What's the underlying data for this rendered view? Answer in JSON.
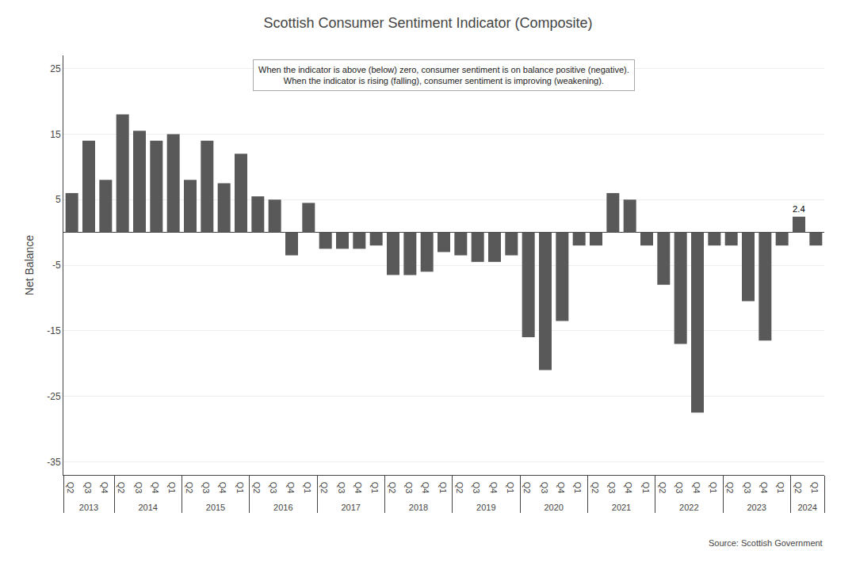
{
  "chart_data": {
    "type": "bar",
    "title": "Scottish Consumer Sentiment Indicator (Composite)",
    "subtitle": [
      "When the indicator is above (below) zero, consumer sentiment is on balance positive (negative).",
      "When the indicator is rising (falling), consumer sentiment is improving (weakening)."
    ],
    "ylabel": "Net Balance",
    "source": "Source: Scottish Government",
    "categories": [
      "Q2",
      "Q3",
      "Q4",
      "Q1",
      "Q2",
      "Q3",
      "Q4",
      "Q1",
      "Q2",
      "Q3",
      "Q4",
      "Q1",
      "Q2",
      "Q3",
      "Q4",
      "Q1",
      "Q2",
      "Q3",
      "Q4",
      "Q1",
      "Q2",
      "Q3",
      "Q4",
      "Q1",
      "Q2",
      "Q3",
      "Q4",
      "Q1",
      "Q2",
      "Q3",
      "Q4",
      "Q1",
      "Q2",
      "Q3",
      "Q4",
      "Q1",
      "Q2",
      "Q3",
      "Q4",
      "Q1",
      "Q2",
      "Q3",
      "Q4",
      "Q1",
      "Q2"
    ],
    "years": [
      "2013",
      "2013",
      "2013",
      "2014",
      "2014",
      "2014",
      "2014",
      "2015",
      "2015",
      "2015",
      "2015",
      "2016",
      "2016",
      "2016",
      "2016",
      "2017",
      "2017",
      "2017",
      "2017",
      "2018",
      "2018",
      "2018",
      "2018",
      "2019",
      "2019",
      "2019",
      "2019",
      "2020",
      "2020",
      "2020",
      "2020",
      "2021",
      "2021",
      "2021",
      "2021",
      "2022",
      "2022",
      "2022",
      "2022",
      "2023",
      "2023",
      "2023",
      "2023",
      "2024",
      "2024"
    ],
    "values": [
      6.0,
      14.0,
      8.0,
      15.0,
      18.0,
      15.5,
      14.0,
      12.0,
      8.0,
      14.0,
      7.5,
      4.5,
      5.5,
      5.0,
      -3.5,
      -2.0,
      -2.5,
      -2.5,
      -2.5,
      -3.0,
      -6.5,
      -6.5,
      -6.0,
      -3.5,
      -3.5,
      -4.5,
      -4.5,
      -2.0,
      -16.0,
      -21.0,
      -13.5,
      -2.0,
      -2.0,
      6.0,
      5.0,
      -2.0,
      -8.0,
      -17.0,
      -27.5,
      -2.0,
      -2.0,
      -10.5,
      -16.5,
      -2.0,
      2.4
    ],
    "value_labels": [
      null,
      null,
      null,
      null,
      null,
      null,
      null,
      null,
      null,
      null,
      null,
      null,
      null,
      null,
      null,
      null,
      null,
      null,
      null,
      null,
      null,
      null,
      null,
      null,
      null,
      null,
      null,
      null,
      null,
      null,
      null,
      null,
      null,
      null,
      null,
      null,
      null,
      null,
      null,
      null,
      null,
      null,
      null,
      null,
      "2.4"
    ],
    "color": "#595959",
    "ylim": [
      -37,
      27
    ],
    "yticks": [
      -35,
      -25,
      -15,
      -5,
      5,
      15,
      25
    ],
    "grid": true
  }
}
